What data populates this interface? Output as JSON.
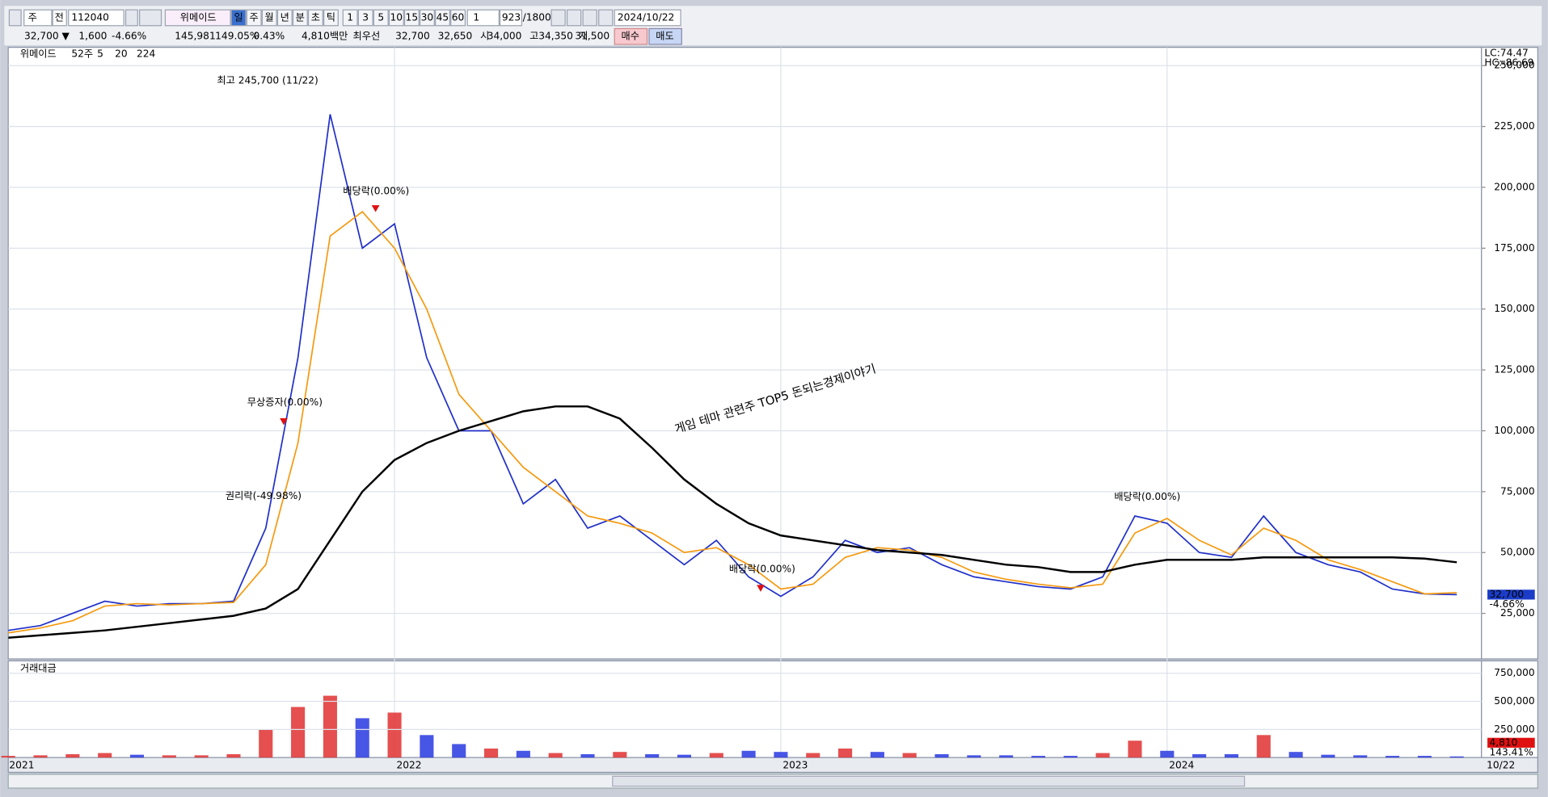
{
  "toolbar": {
    "market": "주",
    "scope": "전",
    "code": "112040",
    "name": "위메이드",
    "periods": [
      "일",
      "주",
      "월",
      "년",
      "분",
      "초",
      "틱"
    ],
    "intervals": [
      "1",
      "3",
      "5",
      "10",
      "15",
      "30",
      "45",
      "60"
    ],
    "count": "1",
    "range": "923",
    "max": "/1800",
    "date": "2024/10/22"
  },
  "quote": {
    "price": "32,700 ▼",
    "change": "1,600",
    "rate": "-4.66%",
    "volume": "145,981",
    "vol_ratio": "149.05%",
    "turnover": "0.43%",
    "amount": "4,810백만",
    "best_label": "최우선",
    "ask": "32,700",
    "bid": "32,650",
    "open_label": "시",
    "open": "34,000",
    "high_label": "고",
    "high": "34,350",
    "low_label": "저",
    "low": "31,500",
    "buy": "매수",
    "sell": "매도"
  },
  "chart_data": [
    {
      "type": "line",
      "legend_title": "위메이드",
      "legend_extra": "52주",
      "legend_extra_color": "#e02020",
      "series": [
        {
          "name": "5",
          "color": "#2030c8",
          "values": [
            18000,
            20000,
            25000,
            30000,
            28000,
            29000,
            29000,
            30000,
            60000,
            130000,
            230000,
            175000,
            185000,
            130000,
            100000,
            100000,
            70000,
            80000,
            60000,
            65000,
            55000,
            45000,
            55000,
            40000,
            32000,
            40000,
            55000,
            50000,
            52000,
            45000,
            40000,
            38000,
            36000,
            35000,
            40000,
            65000,
            62000,
            50000,
            48000,
            65000,
            50000,
            45000,
            42000,
            35000,
            33000,
            32700
          ]
        },
        {
          "name": "20",
          "color": "#f59a10",
          "values": [
            17000,
            19000,
            22000,
            28000,
            29000,
            28500,
            29000,
            29500,
            45000,
            95000,
            180000,
            190000,
            175000,
            150000,
            115000,
            100000,
            85000,
            75000,
            65000,
            62000,
            58000,
            50000,
            52000,
            45000,
            35000,
            37000,
            48000,
            52000,
            51000,
            48000,
            42000,
            39000,
            37000,
            35500,
            37000,
            58000,
            64000,
            55000,
            49000,
            60000,
            55000,
            47000,
            43000,
            38000,
            33000,
            33500
          ]
        },
        {
          "name": "224",
          "color": "#000000",
          "values": [
            15000,
            16000,
            17000,
            18000,
            19500,
            21000,
            22500,
            24000,
            27000,
            35000,
            55000,
            75000,
            88000,
            95000,
            100000,
            104000,
            108000,
            110000,
            110000,
            105000,
            93000,
            80000,
            70000,
            62000,
            57000,
            55000,
            53000,
            51000,
            50000,
            49000,
            47000,
            45000,
            44000,
            42000,
            42000,
            45000,
            47000,
            47000,
            47000,
            48000,
            48000,
            48000,
            48000,
            48000,
            47500,
            46000
          ]
        }
      ],
      "ylim": [
        6300,
        257500
      ],
      "yticks": [
        {
          "value": 25000,
          "label": "25,000"
        },
        {
          "value": 50000,
          "label": "50,000"
        },
        {
          "value": 75000,
          "label": "75,000"
        },
        {
          "value": 100000,
          "label": "100,000"
        },
        {
          "value": 125000,
          "label": "125,000"
        },
        {
          "value": 150000,
          "label": "150,000"
        },
        {
          "value": 175000,
          "label": "175,000"
        },
        {
          "value": 200000,
          "label": "200,000"
        },
        {
          "value": 225000,
          "label": "225,000"
        },
        {
          "value": 250000,
          "label": "250,000"
        }
      ],
      "grid": true,
      "annotations": [
        "최고 245,700 (11/22)",
        "배당락(0.00%)",
        "무상증자(0.00%)",
        "권리락(-49.98%)",
        "배당락(0.00%)",
        "배당락(0.00%)"
      ],
      "lc": "LC:74.47",
      "hc": "HC:-86.69",
      "last_label": "32,700",
      "last_rate": "-4.66%",
      "watermark": "게임 테마 관련주 TOP5 돈되는경제이야기"
    },
    {
      "type": "bar",
      "title": "거래대금",
      "colors": [
        "#e03030",
        "#2838e0"
      ],
      "categories": [
        "2021",
        null,
        null,
        null,
        null,
        null,
        null,
        null,
        null,
        null,
        null,
        null,
        "2022",
        null,
        null,
        null,
        null,
        null,
        null,
        null,
        null,
        null,
        null,
        null,
        "2023",
        null,
        null,
        null,
        null,
        null,
        null,
        null,
        null,
        null,
        null,
        null,
        "2024",
        null,
        null,
        null,
        null,
        null,
        null,
        null,
        null,
        "10/22"
      ],
      "values": [
        15000,
        20000,
        30000,
        40000,
        25000,
        20000,
        20000,
        30000,
        250000,
        450000,
        550000,
        350000,
        400000,
        200000,
        120000,
        80000,
        60000,
        40000,
        30000,
        50000,
        30000,
        25000,
        40000,
        60000,
        50000,
        40000,
        80000,
        50000,
        40000,
        30000,
        20000,
        20000,
        15000,
        15000,
        40000,
        150000,
        60000,
        30000,
        30000,
        200000,
        50000,
        25000,
        20000,
        15000,
        15000,
        10000
      ],
      "ylim": [
        0,
        860000
      ],
      "yticks": [
        {
          "value": 250000,
          "label": "250,000"
        },
        {
          "value": 500000,
          "label": "500,000"
        },
        {
          "value": 750000,
          "label": "750,000"
        }
      ],
      "last_label": "4,810",
      "last_rate": "143.41%"
    }
  ]
}
